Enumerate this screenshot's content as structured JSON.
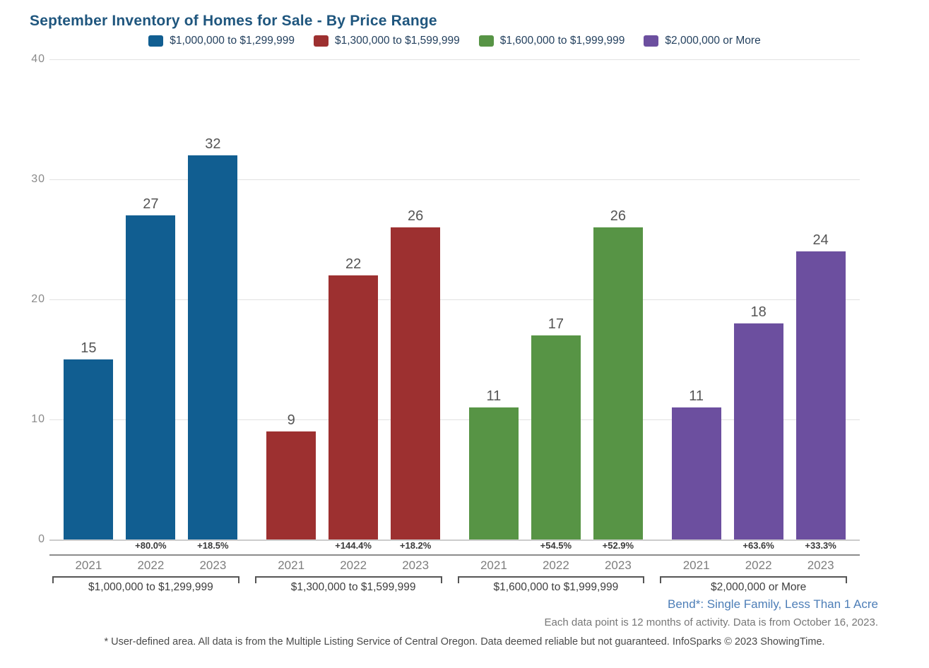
{
  "title": "September Inventory of Homes for Sale - By Price Range",
  "chart_data": {
    "type": "bar",
    "title": "September Inventory of Homes for Sale - By Price Range",
    "categories": [
      "2021",
      "2022",
      "2023"
    ],
    "ylim": [
      0,
      40
    ],
    "yticks": [
      0,
      10,
      20,
      30,
      40
    ],
    "grid": true,
    "legend_position": "top",
    "series": [
      {
        "name": "$1,000,000 to $1,299,999",
        "color": "#115e91",
        "values": [
          15,
          27,
          32
        ],
        "pct_change": [
          "",
          "+80.0%",
          "+18.5%"
        ]
      },
      {
        "name": "$1,300,000 to $1,599,999",
        "color": "#9d3030",
        "values": [
          9,
          22,
          26
        ],
        "pct_change": [
          "",
          "+144.4%",
          "+18.2%"
        ]
      },
      {
        "name": "$1,600,000 to $1,999,999",
        "color": "#579445",
        "values": [
          11,
          17,
          26
        ],
        "pct_change": [
          "",
          "+54.5%",
          "+52.9%"
        ]
      },
      {
        "name": "$2,000,000 or More",
        "color": "#6c4f9f",
        "values": [
          11,
          18,
          24
        ],
        "pct_change": [
          "",
          "+63.6%",
          "+33.3%"
        ]
      }
    ]
  },
  "footnotes": {
    "area_label": "Bend*: Single Family, Less Than 1 Acre",
    "data_note": "Each data point is 12 months of activity. Data is from October 16, 2023.",
    "disclaimer": "* User-defined area. All data is from the Multiple Listing Service of Central Oregon. Data deemed reliable but not guaranteed. InfoSparks © 2023 ShowingTime."
  },
  "colors": {
    "title_text": "#1f567e",
    "legend_text": "#24415f",
    "area_label_text": "#4d7eb7",
    "series_blue": "#115e91",
    "series_red": "#9d3030",
    "series_green": "#579445",
    "series_purple": "#6c4f9f"
  }
}
